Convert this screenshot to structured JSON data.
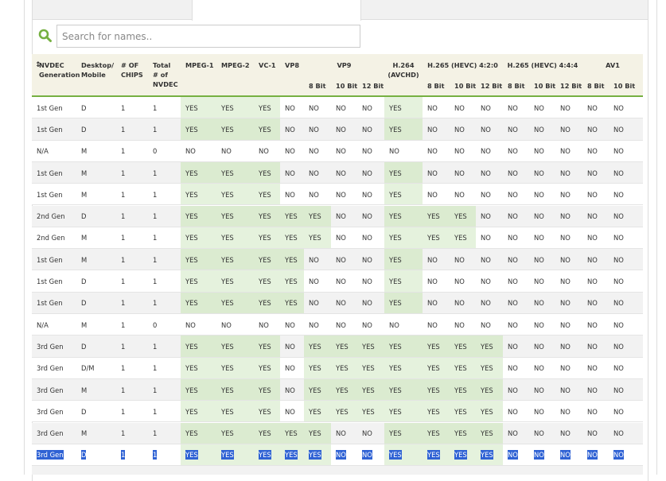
{
  "search": {
    "placeholder": "Search for names.."
  },
  "table": {
    "columns": [
      [
        "NVDEC",
        "Generation"
      ],
      [
        "Desktop/",
        "Mobile"
      ],
      [
        "# OF",
        "CHIPS"
      ],
      [
        "Total",
        "# of",
        "NVDEC"
      ],
      [
        "MPEG-1"
      ],
      [
        "MPEG-2"
      ],
      [
        "VC-1"
      ],
      [
        "VP8"
      ],
      [
        "VP9"
      ],
      [
        "H.264",
        "(AVCHD)"
      ],
      [
        "H.265 (HEVC) 4:2:0"
      ],
      [
        "H.265 (HEVC) 4:4:4"
      ],
      [
        "AV1"
      ]
    ],
    "subcolumns": [
      "8 Bit",
      "10 Bit",
      "12 Bit",
      "8 Bit",
      "10 Bit",
      "12 Bit",
      "8 Bit",
      "10 Bit",
      "12 Bit",
      "8 Bit",
      "10 Bit"
    ],
    "rows": [
      [
        "1st Gen",
        "D",
        "1",
        "1",
        "YES",
        "YES",
        "YES",
        "NO",
        "NO",
        "NO",
        "NO",
        "YES",
        "NO",
        "NO",
        "NO",
        "NO",
        "NO",
        "NO",
        "NO",
        "NO"
      ],
      [
        "1st Gen",
        "D",
        "1",
        "1",
        "YES",
        "YES",
        "YES",
        "NO",
        "NO",
        "NO",
        "NO",
        "YES",
        "NO",
        "NO",
        "NO",
        "NO",
        "NO",
        "NO",
        "NO",
        "NO"
      ],
      [
        "N/A",
        "M",
        "1",
        "0",
        "NO",
        "NO",
        "NO",
        "NO",
        "NO",
        "NO",
        "NO",
        "NO",
        "NO",
        "NO",
        "NO",
        "NO",
        "NO",
        "NO",
        "NO",
        "NO"
      ],
      [
        "1st Gen",
        "M",
        "1",
        "1",
        "YES",
        "YES",
        "YES",
        "NO",
        "NO",
        "NO",
        "NO",
        "YES",
        "NO",
        "NO",
        "NO",
        "NO",
        "NO",
        "NO",
        "NO",
        "NO"
      ],
      [
        "1st Gen",
        "M",
        "1",
        "1",
        "YES",
        "YES",
        "YES",
        "NO",
        "NO",
        "NO",
        "NO",
        "YES",
        "NO",
        "NO",
        "NO",
        "NO",
        "NO",
        "NO",
        "NO",
        "NO"
      ],
      [
        "2nd Gen",
        "D",
        "1",
        "1",
        "YES",
        "YES",
        "YES",
        "YES",
        "YES",
        "NO",
        "NO",
        "YES",
        "YES",
        "YES",
        "NO",
        "NO",
        "NO",
        "NO",
        "NO",
        "NO"
      ],
      [
        "2nd Gen",
        "M",
        "1",
        "1",
        "YES",
        "YES",
        "YES",
        "YES",
        "YES",
        "NO",
        "NO",
        "YES",
        "YES",
        "YES",
        "NO",
        "NO",
        "NO",
        "NO",
        "NO",
        "NO"
      ],
      [
        "1st Gen",
        "M",
        "1",
        "1",
        "YES",
        "YES",
        "YES",
        "YES",
        "NO",
        "NO",
        "NO",
        "YES",
        "NO",
        "NO",
        "NO",
        "NO",
        "NO",
        "NO",
        "NO",
        "NO"
      ],
      [
        "1st Gen",
        "D",
        "1",
        "1",
        "YES",
        "YES",
        "YES",
        "YES",
        "NO",
        "NO",
        "NO",
        "YES",
        "NO",
        "NO",
        "NO",
        "NO",
        "NO",
        "NO",
        "NO",
        "NO"
      ],
      [
        "1st Gen",
        "D",
        "1",
        "1",
        "YES",
        "YES",
        "YES",
        "YES",
        "NO",
        "NO",
        "NO",
        "YES",
        "NO",
        "NO",
        "NO",
        "NO",
        "NO",
        "NO",
        "NO",
        "NO"
      ],
      [
        "N/A",
        "M",
        "1",
        "0",
        "NO",
        "NO",
        "NO",
        "NO",
        "NO",
        "NO",
        "NO",
        "NO",
        "NO",
        "NO",
        "NO",
        "NO",
        "NO",
        "NO",
        "NO",
        "NO"
      ],
      [
        "3rd Gen",
        "D",
        "1",
        "1",
        "YES",
        "YES",
        "YES",
        "NO",
        "YES",
        "YES",
        "YES",
        "YES",
        "YES",
        "YES",
        "YES",
        "NO",
        "NO",
        "NO",
        "NO",
        "NO"
      ],
      [
        "3rd Gen",
        "D/M",
        "1",
        "1",
        "YES",
        "YES",
        "YES",
        "NO",
        "YES",
        "YES",
        "YES",
        "YES",
        "YES",
        "YES",
        "YES",
        "NO",
        "NO",
        "NO",
        "NO",
        "NO"
      ],
      [
        "3rd Gen",
        "M",
        "1",
        "1",
        "YES",
        "YES",
        "YES",
        "NO",
        "YES",
        "YES",
        "YES",
        "YES",
        "YES",
        "YES",
        "YES",
        "NO",
        "NO",
        "NO",
        "NO",
        "NO"
      ],
      [
        "3rd Gen",
        "D",
        "1",
        "1",
        "YES",
        "YES",
        "YES",
        "NO",
        "YES",
        "YES",
        "YES",
        "YES",
        "YES",
        "YES",
        "YES",
        "NO",
        "NO",
        "NO",
        "NO",
        "NO"
      ],
      [
        "3rd Gen",
        "M",
        "1",
        "1",
        "YES",
        "YES",
        "YES",
        "YES",
        "YES",
        "NO",
        "NO",
        "YES",
        "YES",
        "YES",
        "YES",
        "NO",
        "NO",
        "NO",
        "NO",
        "NO"
      ],
      [
        "3rd Gen",
        "D",
        "1",
        "1",
        "YES",
        "YES",
        "YES",
        "YES",
        "YES",
        "NO",
        "NO",
        "YES",
        "YES",
        "YES",
        "YES",
        "NO",
        "NO",
        "NO",
        "NO",
        "NO"
      ]
    ]
  }
}
